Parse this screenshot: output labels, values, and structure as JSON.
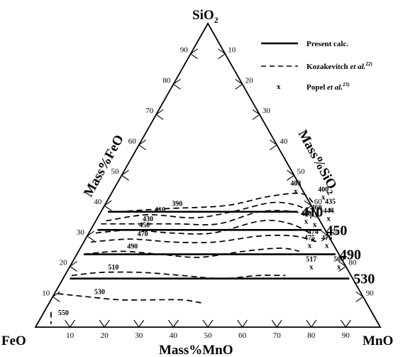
{
  "chart_data": {
    "type": "ternary",
    "corners": {
      "top": {
        "main": "SiO",
        "sub": "2"
      },
      "left": "FeO",
      "right": "MnO"
    },
    "axes": {
      "left": "Mass%FeO",
      "right": {
        "main": "Mass%SiO",
        "sub": "2"
      },
      "bottom": "Mass%MnO"
    },
    "ticks": {
      "left": [
        10,
        20,
        30,
        40,
        50,
        60,
        70,
        80,
        90
      ],
      "right": [
        90,
        80,
        70,
        60,
        50,
        40,
        30,
        20,
        10
      ],
      "bottom": [
        10,
        20,
        30,
        40,
        50,
        60,
        70,
        80,
        90
      ]
    },
    "legend": [
      {
        "label": "Present calc.",
        "style": "solid"
      },
      {
        "label": "Kozakevitch",
        "italic": "et al.",
        "sup": "22)",
        "style": "dashed"
      },
      {
        "label": "Popel",
        "italic": "et al.",
        "sup": "23)",
        "style": "marker"
      }
    ],
    "present_calc": [
      {
        "label": "410",
        "mno": 2,
        "sio2": 38,
        "mno_end": 57
      },
      {
        "label": "450",
        "mno": 2,
        "sio2": 32,
        "mno_end": 67
      },
      {
        "label": "490",
        "mno": 2,
        "sio2": 24,
        "mno_end": 75
      },
      {
        "label": "530",
        "mno": 2,
        "sio2": 16,
        "mno_end": 83
      }
    ],
    "kozakevitch": [
      {
        "label": "390",
        "points": [
          [
            5,
            38
          ],
          [
            18,
            39
          ],
          [
            35,
            40
          ],
          [
            46,
            43
          ],
          [
            55,
            44
          ],
          [
            60,
            41
          ]
        ]
      },
      {
        "label": "410",
        "points": [
          [
            3,
            35
          ],
          [
            14,
            37
          ],
          [
            28,
            36
          ],
          [
            38,
            38
          ],
          [
            48,
            41
          ],
          [
            56,
            40
          ],
          [
            62,
            37
          ]
        ]
      },
      {
        "label": "430",
        "points": [
          [
            2,
            34
          ],
          [
            12,
            34
          ],
          [
            24,
            34
          ],
          [
            36,
            34
          ],
          [
            46,
            38
          ],
          [
            56,
            38
          ],
          [
            62,
            36
          ]
        ]
      },
      {
        "label": "450",
        "points": [
          [
            2,
            31
          ],
          [
            12,
            32
          ],
          [
            24,
            31
          ],
          [
            36,
            31
          ],
          [
            48,
            35
          ],
          [
            57,
            34
          ],
          [
            64,
            31
          ]
        ]
      },
      {
        "label": "470",
        "points": [
          [
            2,
            28
          ],
          [
            13,
            29
          ],
          [
            26,
            28
          ],
          [
            38,
            28
          ],
          [
            50,
            30
          ],
          [
            60,
            30
          ],
          [
            68,
            28
          ]
        ]
      },
      {
        "label": "490",
        "points": [
          [
            2,
            24
          ],
          [
            12,
            25
          ],
          [
            24,
            24
          ],
          [
            36,
            23
          ],
          [
            48,
            25
          ],
          [
            58,
            26
          ],
          [
            64,
            25
          ]
        ]
      },
      {
        "label": "510",
        "points": [
          [
            2,
            17
          ],
          [
            10,
            18
          ],
          [
            22,
            18
          ],
          [
            34,
            17
          ],
          [
            46,
            16
          ],
          [
            56,
            17
          ],
          [
            64,
            17
          ]
        ]
      },
      {
        "label": "530",
        "points": [
          [
            1,
            11
          ],
          [
            10,
            10
          ],
          [
            20,
            9
          ],
          [
            30,
            9
          ],
          [
            38,
            9
          ],
          [
            44,
            8
          ]
        ]
      },
      {
        "label": "550",
        "points": [
          [
            2,
            5
          ],
          [
            3,
            3
          ],
          [
            4,
            1
          ]
        ]
      }
    ],
    "popel": [
      {
        "label": "403",
        "mno": 53,
        "sio2": 45
      },
      {
        "label": "400",
        "mno": 62,
        "sio2": 43
      },
      {
        "label": "435",
        "mno": 66,
        "sio2": 39
      },
      {
        "label": "460",
        "mno": 63,
        "sio2": 37
      },
      {
        "label": "444",
        "mno": 67,
        "sio2": 36
      },
      {
        "label": "400",
        "mno": 61,
        "sio2": 35
      },
      {
        "label": "",
        "mno": 64,
        "sio2": 34
      },
      {
        "label": "474",
        "mno": 66,
        "sio2": 29
      },
      {
        "label": "475",
        "mno": 66,
        "sio2": 27
      },
      {
        "label": "476",
        "mno": 71,
        "sio2": 27
      },
      {
        "label": "517",
        "mno": 70,
        "sio2": 20
      },
      {
        "label": "500",
        "mno": 78,
        "sio2": 20
      }
    ]
  }
}
